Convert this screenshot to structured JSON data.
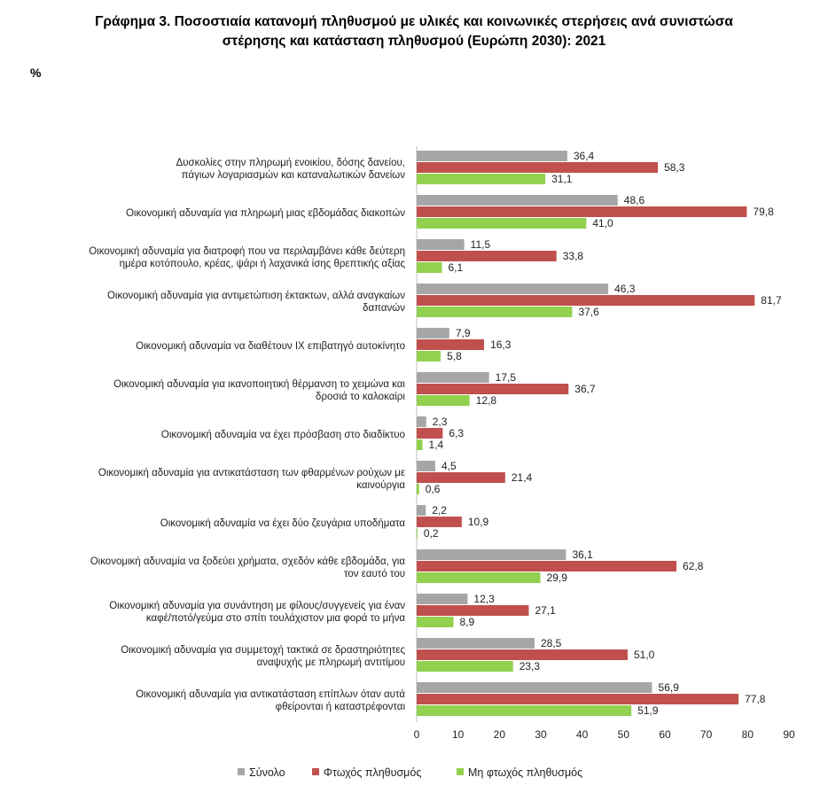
{
  "header": {
    "title_line1": "Γράφημα 3. Ποσοστιαία κατανομή πληθυσμού με υλικές και κοινωνικές στερήσεις ανά συνιστώσα",
    "title_line2": "στέρησης και κατάσταση πληθυσμού (Ευρώπη 2030): 2021",
    "unit": "%"
  },
  "chart_data": {
    "type": "bar",
    "orientation": "horizontal",
    "title": "Γράφημα 3. Ποσοστιαία κατανομή πληθυσμού με υλικές και κοινωνικές στερήσεις ανά συνιστώσα στέρησης και κατάσταση πληθυσμού (Ευρώπη 2030): 2021",
    "ylabel": "%",
    "xlim": [
      0,
      90
    ],
    "xticks": [
      0,
      10,
      20,
      30,
      40,
      50,
      60,
      70,
      80,
      90
    ],
    "grid": false,
    "legend_position": "bottom",
    "categories": [
      [
        "Δυσκολίες στην πληρωμή ενοικίου, δόσης δανείου,",
        "πάγιων λογαριασμών και καταναλωτικών δανείων"
      ],
      [
        "Οικονομική αδυναμία για πληρωμή  μιας εβδομάδας διακοπών"
      ],
      [
        "Οικονομική αδυναμία για διατροφή που να περιλαμβάνει κάθε δεύτερη",
        "ημέρα κοτόπουλο, κρέας, ψάρι ή λαχανικά ίσης θρεπτικής αξίας"
      ],
      [
        "Οικονομική αδυναμία για αντιμετώπιση έκτακτων, αλλά αναγκαίων",
        "δαπανών"
      ],
      [
        "Οικονομική αδυναμία να διαθέτουν ΙΧ επιβατηγό αυτοκίνητο"
      ],
      [
        "Οικονομική αδυναμία για ικανοποιητική θέρμανση το χειμώνα και",
        "δροσιά το καλοκαίρι"
      ],
      [
        "Οικονομική αδυναμία να έχει πρόσβαση στο διαδίκτυο"
      ],
      [
        "Οικονομική αδυναμία για αντικατάσταση των φθαρμένων ρούχων με",
        "καινούργια"
      ],
      [
        "Οικονομική αδυναμία να έχει δύο ζευγάρια υποδήματα"
      ],
      [
        "Οικονομική αδυναμία να ξοδεύει χρήματα, σχεδόν κάθε εβδομάδα, για",
        "τον εαυτό του"
      ],
      [
        "Οικονομική αδυναμία για συνάντηση με φίλους/συγγενείς για έναν",
        "καφέ/ποτό/γεύμα στο σπίτι τουλάχιστον μια φορά το μήνα"
      ],
      [
        "Οικονομική αδυναμία για συμμετοχή τακτικά σε δραστηριότητες",
        "αναψυχής με πληρωμή αντιτίμου"
      ],
      [
        "Οικονομική αδυναμία για αντικατάσταση επίπλων όταν αυτά",
        "φθείρονται ή καταστρέφονται"
      ]
    ],
    "series": [
      {
        "name": "Σύνολο",
        "color": "#a6a6a6",
        "values": [
          36.4,
          48.6,
          11.5,
          46.3,
          7.9,
          17.5,
          2.3,
          4.5,
          2.2,
          36.1,
          12.3,
          28.5,
          56.9
        ],
        "labels": [
          "36,4",
          "48,6",
          "11,5",
          "46,3",
          "7,9",
          "17,5",
          "2,3",
          "4,5",
          "2,2",
          "36,1",
          "12,3",
          "28,5",
          "56,9"
        ]
      },
      {
        "name": "Φτωχός πληθυσμός",
        "color": "#c0504d",
        "values": [
          58.3,
          79.8,
          33.8,
          81.7,
          16.3,
          36.7,
          6.3,
          21.4,
          10.9,
          62.8,
          27.1,
          51.0,
          77.8
        ],
        "labels": [
          "58,3",
          "79,8",
          "33,8",
          "81,7",
          "16,3",
          "36,7",
          "6,3",
          "21,4",
          "10,9",
          "62,8",
          "27,1",
          "51,0",
          "77,8"
        ]
      },
      {
        "name": "Μη φτωχός πληθυσμός",
        "color": "#92d050",
        "values": [
          31.1,
          41.0,
          6.1,
          37.6,
          5.8,
          12.8,
          1.4,
          0.6,
          0.2,
          29.9,
          8.9,
          23.3,
          51.9
        ],
        "labels": [
          "31,1",
          "41,0",
          "6,1",
          "37,6",
          "5,8",
          "12,8",
          "1,4",
          "0,6",
          "0,2",
          "29,9",
          "8,9",
          "23,3",
          "51,9"
        ]
      }
    ]
  }
}
